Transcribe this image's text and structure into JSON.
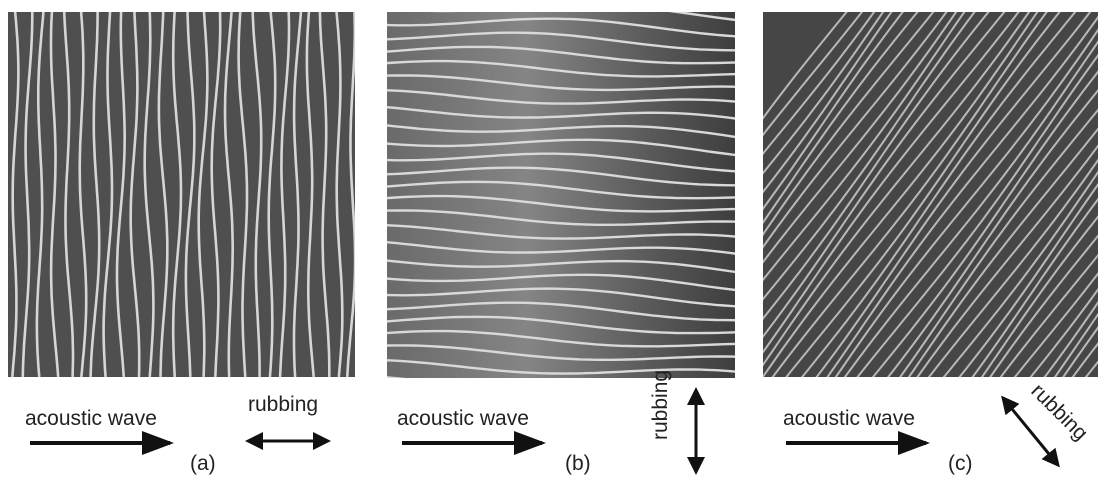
{
  "panels": [
    {
      "wave": "acoustic wave",
      "rubbing": "rubbing",
      "label": "(a)"
    },
    {
      "wave": "acoustic wave",
      "rubbing": "rubbing",
      "label": "(b)"
    },
    {
      "wave": "acoustic wave",
      "rubbing": "rubbing",
      "label": "(c)"
    }
  ]
}
